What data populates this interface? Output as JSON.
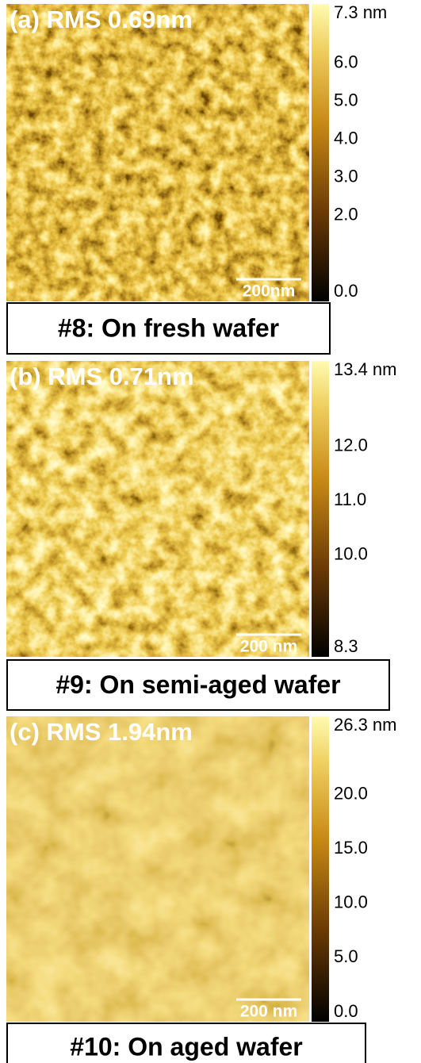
{
  "panels": [
    {
      "title": "(a) RMS 0.69nm",
      "scale_bar": "200nm",
      "caption": "#8: On fresh wafer",
      "colorbar": {
        "range": [
          0,
          7.3
        ],
        "ticks": [
          {
            "value": 7.3,
            "label": "7.3 nm"
          },
          {
            "value": 6,
            "label": "6.0"
          },
          {
            "value": 5,
            "label": "5.0"
          },
          {
            "value": 4,
            "label": "4.0"
          },
          {
            "value": 3,
            "label": "3.0"
          },
          {
            "value": 2,
            "label": "2.0"
          },
          {
            "value": 0,
            "label": "0.0"
          }
        ]
      }
    },
    {
      "title": "(b) RMS 0.71nm",
      "scale_bar": "200 nm",
      "caption": "#9: On semi-aged wafer",
      "colorbar": {
        "range": [
          8.3,
          13.4
        ],
        "ticks": [
          {
            "value": 13.4,
            "label": "13.4 nm"
          },
          {
            "value": 12,
            "label": "12.0"
          },
          {
            "value": 11,
            "label": "11.0"
          },
          {
            "value": 10,
            "label": "10.0"
          },
          8.3
        ]
      }
    },
    {
      "title": "(c) RMS 1.94nm",
      "scale_bar": "200 nm",
      "caption": "#10: On aged wafer",
      "colorbar": {
        "range": [
          0,
          26.3
        ],
        "ticks": [
          {
            "value": 26.3,
            "label": "26.3 nm"
          },
          {
            "value": 20,
            "label": "20.0"
          },
          {
            "value": 15,
            "label": "15.0"
          },
          {
            "value": 10,
            "label": "10.0"
          },
          {
            "value": 5,
            "label": "5.0"
          },
          {
            "value": 0,
            "label": "0.0"
          }
        ]
      }
    }
  ]
}
